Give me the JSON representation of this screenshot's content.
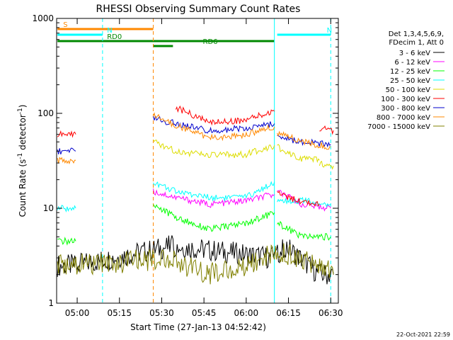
{
  "chart_data": {
    "type": "line",
    "title": "RHESSI Observing Summary Count Rates",
    "xlabel": "Start Time (27-Jan-13 04:52:42)",
    "ylabel_main": "Count Rate (s",
    "ylabel_sup1": "-1",
    "ylabel_mid": " detector",
    "ylabel_sup2": "-1",
    "ylabel_end": ")",
    "yscale": "log",
    "ylim": [
      1,
      1000
    ],
    "xlim": [
      "04:52:42",
      "06:32:42"
    ],
    "x_ticks": [
      "05:00",
      "05:15",
      "05:30",
      "05:45",
      "06:00",
      "06:15",
      "06:30"
    ],
    "y_ticks": [
      "1",
      "10",
      "100",
      "1000"
    ],
    "legend_header": [
      "Det 1,3,4,5,6,9,",
      "FDecim 1, Att 0"
    ],
    "series": [
      {
        "name": "3 - 6 keV",
        "color": "#000000",
        "segments": [
          {
            "x": [
              "04:53",
              "04:59:30",
              "05:34",
              "06:10",
              "06:14",
              "06:26",
              "06:31"
            ],
            "y": [
              2.5,
              2.5,
              4,
              3,
              4,
              2,
              2
            ]
          }
        ]
      },
      {
        "name": "6 - 12 keV",
        "color": "#ff00ff",
        "segments": [
          {
            "x": [
              "05:27",
              "05:35",
              "05:47",
              "06:00",
              "06:10"
            ],
            "y": [
              15,
              13,
              11,
              12,
              14
            ]
          },
          {
            "x": [
              "06:11",
              "06:20",
              "06:30"
            ],
            "y": [
              15,
              11,
              10
            ]
          }
        ]
      },
      {
        "name": "12 - 25 keV",
        "color": "#00ff00",
        "segments": [
          {
            "x": [
              "04:53",
              "04:59:30"
            ],
            "y": [
              4.5,
              4.5
            ]
          },
          {
            "x": [
              "05:27",
              "05:35",
              "05:47",
              "06:00",
              "06:10"
            ],
            "y": [
              11,
              8,
              6,
              7,
              9
            ]
          },
          {
            "x": [
              "06:11",
              "06:20",
              "06:30"
            ],
            "y": [
              7,
              5,
              5
            ]
          }
        ]
      },
      {
        "name": "25 - 50 keV",
        "color": "#00ffff",
        "segments": [
          {
            "x": [
              "04:53",
              "04:59:30"
            ],
            "y": [
              10,
              10
            ]
          },
          {
            "x": [
              "05:27",
              "05:35",
              "05:47",
              "06:00",
              "06:10"
            ],
            "y": [
              19,
              15,
              13,
              13,
              19
            ]
          },
          {
            "x": [
              "06:11",
              "06:20",
              "06:30"
            ],
            "y": [
              12,
              12,
              11
            ]
          }
        ]
      },
      {
        "name": "50 - 100 keV",
        "color": "#dddd00",
        "segments": [
          {
            "x": [
              "05:27",
              "05:35",
              "05:47",
              "06:00",
              "06:10"
            ],
            "y": [
              50,
              40,
              36,
              37,
              46
            ]
          },
          {
            "x": [
              "06:11",
              "06:20",
              "06:26"
            ],
            "y": [
              44,
              33,
              32
            ]
          },
          {
            "x": [
              "06:26",
              "06:31"
            ],
            "y": [
              30,
              28
            ]
          }
        ]
      },
      {
        "name": "100 - 300 keV",
        "color": "#ff0000",
        "segments": [
          {
            "x": [
              "04:53",
              "04:59:30"
            ],
            "y": [
              60,
              60
            ]
          },
          {
            "x": [
              "05:35",
              "05:47",
              "06:00",
              "06:10"
            ],
            "y": [
              115,
              80,
              85,
              105
            ]
          },
          {
            "x": [
              "06:11",
              "06:18",
              "06:26"
            ],
            "y": [
              15,
              12,
              11
            ]
          },
          {
            "x": [
              "06:26",
              "06:31"
            ],
            "y": [
              70,
              66
            ]
          }
        ]
      },
      {
        "name": "300 - 800 keV",
        "color": "#0000cc",
        "segments": [
          {
            "x": [
              "04:53",
              "04:59:30"
            ],
            "y": [
              40,
              40
            ]
          },
          {
            "x": [
              "05:27",
              "05:35",
              "05:47",
              "06:00",
              "06:10"
            ],
            "y": [
              88,
              78,
              65,
              70,
              78
            ]
          },
          {
            "x": [
              "06:11",
              "06:20",
              "06:30"
            ],
            "y": [
              56,
              50,
              47
            ]
          }
        ]
      },
      {
        "name": "800 - 7000 keV",
        "color": "#ff8800",
        "segments": [
          {
            "x": [
              "04:53",
              "04:59:30"
            ],
            "y": [
              32,
              32
            ]
          },
          {
            "x": [
              "05:27",
              "05:35",
              "05:47",
              "06:00",
              "06:10"
            ],
            "y": [
              95,
              75,
              55,
              60,
              72
            ]
          },
          {
            "x": [
              "06:11",
              "06:20",
              "06:30"
            ],
            "y": [
              63,
              50,
              44
            ]
          }
        ]
      },
      {
        "name": "7000 - 15000 keV",
        "color": "#808000",
        "segments": [
          {
            "x": [
              "04:53",
              "04:59:30",
              "05:34",
              "05:45",
              "06:00",
              "06:10",
              "06:20",
              "06:31"
            ],
            "y": [
              2.5,
              2.5,
              3,
              2,
              2.5,
              3.5,
              3,
              2
            ]
          }
        ]
      }
    ],
    "flags": [
      {
        "label": "S",
        "color": "#ff8800",
        "x_start": "04:53",
        "x_end": "05:27",
        "style": "solid"
      },
      {
        "label": "N",
        "color": "#00ffff",
        "x_start": "04:53",
        "x_end": "05:09",
        "style": "solid"
      },
      {
        "label": "N",
        "color": "#00ffff",
        "x_start": "06:11",
        "x_end": "06:30",
        "style": "solid"
      },
      {
        "label": "RD0",
        "color": "#008800",
        "x_start": "04:53",
        "x_end": "06:10",
        "style": "solid"
      },
      {
        "label": "RD6",
        "color": "#008800",
        "x_start": "05:27",
        "x_end": "05:34",
        "style": "solid"
      }
    ],
    "vlines": [
      {
        "x": "05:09",
        "color": "#00ffff",
        "style": "dashed"
      },
      {
        "x": "05:27",
        "color": "#ff8800",
        "style": "dashed"
      },
      {
        "x": "06:10",
        "color": "#00ffff",
        "style": "solid"
      },
      {
        "x": "06:30",
        "color": "#00ffff",
        "style": "dashed"
      }
    ],
    "footer": "22-Oct-2021 22:59"
  }
}
